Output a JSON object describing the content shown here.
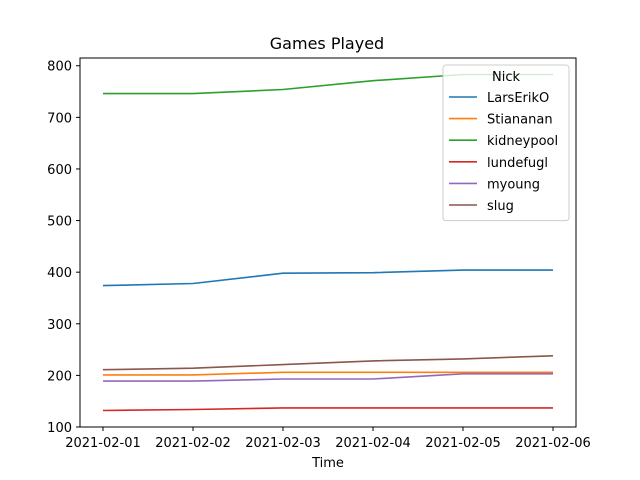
{
  "chart_data": {
    "type": "line",
    "title": "Games Played",
    "xlabel": "Time",
    "ylabel": "",
    "x": [
      "2021-02-01",
      "2021-02-02",
      "2021-02-03",
      "2021-02-04",
      "2021-02-05",
      "2021-02-06"
    ],
    "ylim": [
      100,
      815
    ],
    "yticks": [
      100,
      200,
      300,
      400,
      500,
      600,
      700,
      800
    ],
    "grid": false,
    "legend": {
      "title": "Nick",
      "placement": "top-right"
    },
    "series": [
      {
        "name": "LarsErikO",
        "color": "#1f77b4",
        "values": [
          374,
          378,
          398,
          399,
          404,
          404
        ]
      },
      {
        "name": "Stiananan",
        "color": "#ff7f0e",
        "values": [
          201,
          201,
          206,
          206,
          206,
          206
        ]
      },
      {
        "name": "kidneypool",
        "color": "#2ca02c",
        "values": [
          746,
          746,
          754,
          771,
          783,
          783
        ]
      },
      {
        "name": "lundefugl",
        "color": "#d62728",
        "values": [
          132,
          134,
          137,
          137,
          137,
          137
        ]
      },
      {
        "name": "myoung",
        "color": "#9467bd",
        "values": [
          189,
          189,
          193,
          193,
          203,
          203
        ]
      },
      {
        "name": "slug",
        "color": "#8c564b",
        "values": [
          211,
          214,
          221,
          228,
          232,
          238
        ]
      }
    ]
  }
}
